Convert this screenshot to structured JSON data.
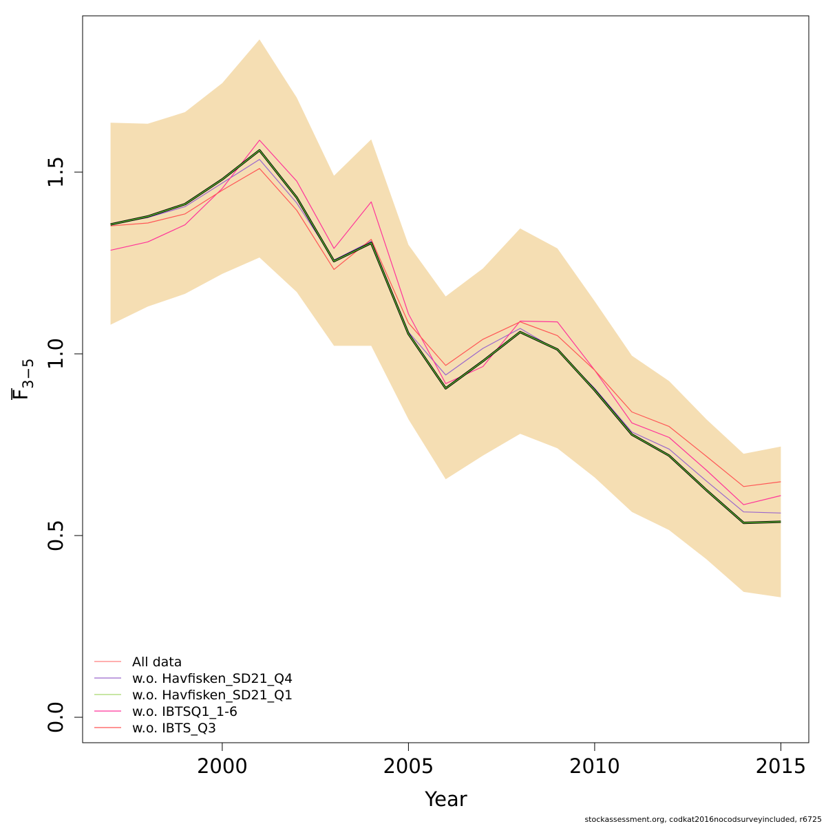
{
  "chart_data": {
    "type": "line",
    "xlabel": "Year",
    "ylabel_main": "F",
    "ylabel_sub": "3−5",
    "xlim": [
      1996.25,
      2015.75
    ],
    "ylim": [
      -0.07,
      1.93
    ],
    "xticks": [
      2000,
      2005,
      2010,
      2015
    ],
    "yticks": [
      0.0,
      0.5,
      1.0,
      1.5
    ],
    "ytick_labels": [
      "0.0",
      "0.5",
      "1.0",
      "1.5"
    ],
    "x": [
      1997,
      1998,
      1999,
      2000,
      2001,
      2002,
      2003,
      2004,
      2005,
      2006,
      2007,
      2008,
      2009,
      2010,
      2011,
      2012,
      2013,
      2014,
      2015
    ],
    "band": {
      "color": "#F5DEB3",
      "upper": [
        1.636,
        1.633,
        1.665,
        1.745,
        1.865,
        1.705,
        1.49,
        1.59,
        1.3,
        1.158,
        1.235,
        1.345,
        1.29,
        1.145,
        0.995,
        0.925,
        0.82,
        0.725,
        0.745
      ],
      "lower": [
        1.08,
        1.13,
        1.165,
        1.22,
        1.265,
        1.17,
        1.022,
        1.022,
        0.82,
        0.655,
        0.72,
        0.78,
        0.74,
        0.66,
        0.565,
        0.515,
        0.435,
        0.345,
        0.33
      ]
    },
    "series": [
      {
        "name": "All data",
        "color": "#FF7F7F",
        "legend": true,
        "values": [
          1.356,
          1.378,
          1.412,
          1.48,
          1.56,
          1.43,
          1.255,
          1.305,
          1.055,
          0.905,
          0.98,
          1.06,
          1.012,
          0.9,
          0.778,
          0.72,
          0.625,
          0.535,
          0.538
        ]
      },
      {
        "name": "w.o. Havfisken_SD21_Q4",
        "color": "#9966CC",
        "legend": true,
        "values": [
          1.356,
          1.375,
          1.405,
          1.47,
          1.535,
          1.415,
          1.258,
          1.31,
          1.06,
          0.942,
          1.015,
          1.07,
          1.01,
          0.905,
          0.785,
          0.738,
          0.65,
          0.565,
          0.562
        ]
      },
      {
        "name": "w.o. Havfisken_SD21_Q1",
        "color": "#A8D66E",
        "legend": true,
        "values": [
          1.356,
          1.378,
          1.412,
          1.48,
          1.56,
          1.43,
          1.255,
          1.305,
          1.055,
          0.905,
          0.98,
          1.06,
          1.012,
          0.9,
          0.778,
          0.72,
          0.625,
          0.535,
          0.538
        ]
      },
      {
        "name": "w.o. IBTSQ1_1-6",
        "color": "#FF3399",
        "legend": true,
        "values": [
          1.285,
          1.308,
          1.355,
          1.455,
          1.588,
          1.475,
          1.29,
          1.418,
          1.11,
          0.918,
          0.965,
          1.09,
          1.088,
          0.955,
          0.81,
          0.77,
          0.68,
          0.585,
          0.61
        ]
      },
      {
        "name": "w.o. IBTS_Q3",
        "color": "#FF5555",
        "legend": true,
        "values": [
          1.352,
          1.36,
          1.385,
          1.45,
          1.51,
          1.395,
          1.232,
          1.315,
          1.085,
          0.968,
          1.04,
          1.088,
          1.05,
          0.955,
          0.84,
          0.8,
          0.718,
          0.635,
          0.648
        ]
      },
      {
        "name": "",
        "color": "#000000",
        "legend": false,
        "width": 3.2,
        "values": [
          1.356,
          1.378,
          1.412,
          1.48,
          1.56,
          1.43,
          1.255,
          1.305,
          1.055,
          0.905,
          0.98,
          1.06,
          1.012,
          0.9,
          0.778,
          0.72,
          0.625,
          0.535,
          0.538
        ]
      },
      {
        "name": "",
        "color": "#66CC33",
        "legend": false,
        "width": 1.2,
        "values": [
          1.356,
          1.378,
          1.412,
          1.48,
          1.56,
          1.43,
          1.255,
          1.305,
          1.055,
          0.905,
          0.98,
          1.06,
          1.012,
          0.9,
          0.778,
          0.72,
          0.625,
          0.535,
          0.538
        ]
      }
    ],
    "legend_placement": "bottom-left",
    "grid": false
  },
  "footer": "stockassessment.org, codkat2016nocodsurveyincluded, r6725"
}
